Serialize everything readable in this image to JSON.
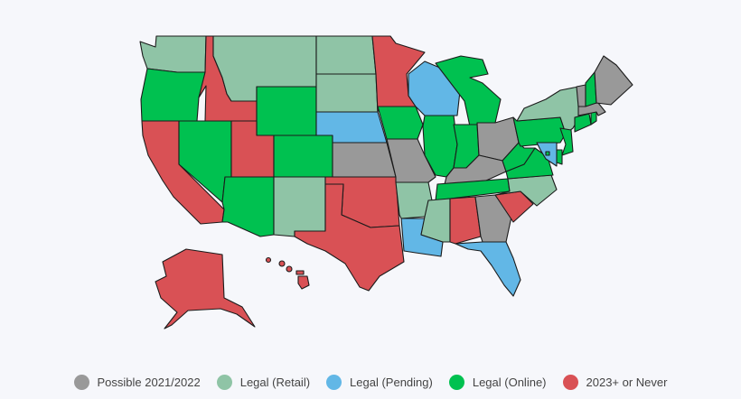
{
  "colors": {
    "possible": "#999999",
    "retail": "#8fc4a6",
    "pending": "#62b7e6",
    "online": "#00c150",
    "never": "#d95155",
    "background": "#f6f7fb"
  },
  "legend": [
    {
      "key": "possible",
      "label": "Possible 2021/2022"
    },
    {
      "key": "retail",
      "label": "Legal (Retail)"
    },
    {
      "key": "pending",
      "label": "Legal (Pending)"
    },
    {
      "key": "online",
      "label": "Legal (Online)"
    },
    {
      "key": "never",
      "label": "2023+ or Never"
    }
  ],
  "states": {
    "WA": "retail",
    "OR": "online",
    "CA": "never",
    "NV": "online",
    "ID": "never",
    "MT": "retail",
    "WY": "online",
    "UT": "never",
    "AZ": "online",
    "CO": "online",
    "NM": "retail",
    "ND": "retail",
    "SD": "retail",
    "NE": "pending",
    "KS": "possible",
    "OK": "never",
    "TX": "never",
    "MN": "never",
    "IA": "online",
    "MO": "possible",
    "AR": "retail",
    "LA": "pending",
    "WI": "pending",
    "IL": "online",
    "MS": "retail",
    "MI": "online",
    "IN": "online",
    "KY": "possible",
    "TN": "online",
    "AL": "never",
    "OH": "possible",
    "GA": "possible",
    "FL": "pending",
    "SC": "never",
    "NC": "retail",
    "VA": "online",
    "WV": "online",
    "PA": "online",
    "NY": "retail",
    "VT": "possible",
    "NH": "online",
    "ME": "possible",
    "MA": "possible",
    "CT": "online",
    "RI": "online",
    "NJ": "online",
    "DE": "online",
    "MD": "pending",
    "DC": "online",
    "AK": "never",
    "HI": "never"
  }
}
